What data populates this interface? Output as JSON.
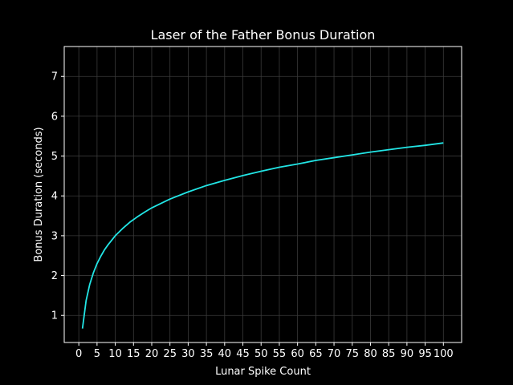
{
  "chart_data": {
    "type": "line",
    "title": "Laser of the Father Bonus Duration",
    "xlabel": "Lunar Spike Count",
    "ylabel": "Bonus Duration (seconds)",
    "xlim": [
      -4,
      105
    ],
    "ylim": [
      0.32,
      7.75
    ],
    "xticks": [
      0,
      5,
      10,
      15,
      20,
      25,
      30,
      35,
      40,
      45,
      50,
      55,
      60,
      65,
      70,
      75,
      80,
      85,
      90,
      95,
      100
    ],
    "yticks": [
      1,
      2,
      3,
      4,
      5,
      6,
      7
    ],
    "grid": true,
    "background_color": "#000000",
    "text_color": "#ffffff",
    "grid_color": "#3a3a3a",
    "series": [
      {
        "color": "#22e5e5",
        "x": [
          1,
          2,
          3,
          4,
          5,
          6,
          7,
          8,
          10,
          12,
          14,
          16,
          18,
          20,
          25,
          30,
          35,
          40,
          45,
          50,
          55,
          60,
          65,
          70,
          75,
          80,
          85,
          90,
          95,
          100
        ],
        "y": [
          0.67,
          1.37,
          1.78,
          2.07,
          2.3,
          2.48,
          2.64,
          2.77,
          3.0,
          3.18,
          3.34,
          3.47,
          3.59,
          3.7,
          3.92,
          4.1,
          4.26,
          4.39,
          4.51,
          4.62,
          4.72,
          4.8,
          4.89,
          4.96,
          5.03,
          5.1,
          5.16,
          5.22,
          5.27,
          5.33
        ]
      }
    ]
  }
}
